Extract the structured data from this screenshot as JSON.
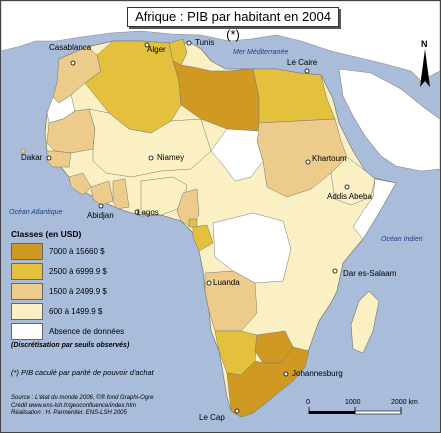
{
  "map": {
    "title": "Afrique : PIB par habitant en 2004 (*)",
    "north_label": "N",
    "seas": {
      "mediterranean": "Mer Méditerranée",
      "atlantic": "Océan Atlantique",
      "indian": "Océan Indien"
    },
    "cities": [
      {
        "id": "casablanca",
        "label": "Casablanca"
      },
      {
        "id": "alger",
        "label": "Alger"
      },
      {
        "id": "tunis",
        "label": "Tunis"
      },
      {
        "id": "le-caire",
        "label": "Le Caire"
      },
      {
        "id": "dakar",
        "label": "Dakar"
      },
      {
        "id": "niamey",
        "label": "Niamey"
      },
      {
        "id": "khartoum",
        "label": "Khartoum"
      },
      {
        "id": "addis-abeba",
        "label": "Addis Abeba"
      },
      {
        "id": "abidjan",
        "label": "Abidjan"
      },
      {
        "id": "lagos",
        "label": "Lagos"
      },
      {
        "id": "dar-es-salaam",
        "label": "Dar es-Salaam"
      },
      {
        "id": "luanda",
        "label": "Luanda"
      },
      {
        "id": "johannesburg",
        "label": "Johannesburg"
      },
      {
        "id": "le-cap",
        "label": "Le Cap"
      }
    ],
    "legend": {
      "title": "Classes (en USD)",
      "classes": [
        {
          "label": "7000 à 15660 $",
          "color": "#d09a22"
        },
        {
          "label": "2500 à 6999.9 $",
          "color": "#e3c13d"
        },
        {
          "label": "1500 à 2499.9 $",
          "color": "#eccb8b"
        },
        {
          "label": "600 à 1499.9 $",
          "color": "#faf0c4"
        },
        {
          "label": "Absence de données",
          "color": "#ffffff"
        }
      ],
      "note": "(Discrétisation par seuils observés)"
    },
    "footnote": "(*) PIB  caculé par parité de pouvoir d'achat",
    "credits": {
      "line1": "Source : L'état du monde 2006, ©® fond Graphi-Ogre",
      "line2": "Crédit www.ens-lsh.fr/geoconfluence/index.htm",
      "line3": "Réalisation : H. Parmentier. ENS-LSH 2005"
    },
    "scale": {
      "labels": [
        "0",
        "1000",
        "2000 km"
      ]
    },
    "colors": {
      "ocean": "#a9bcda",
      "border": "#777777",
      "outside_land": "#ffffff"
    }
  }
}
